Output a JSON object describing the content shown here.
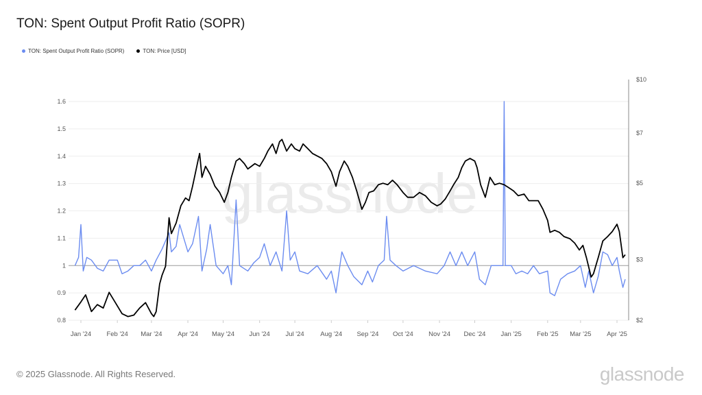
{
  "title": "TON: Spent Output Profit Ratio (SOPR)",
  "footer": "© 2025 Glassnode. All Rights Reserved.",
  "brand": "glassnode",
  "watermark": "glassnode",
  "chart_data": {
    "type": "line",
    "title": "TON: Spent Output Profit Ratio (SOPR)",
    "legend_placement": "top-left",
    "grid": true,
    "reference_line": 1.0,
    "x_ticks": [
      "Jan '24",
      "Feb '24",
      "Mar '24",
      "Apr '24",
      "May '24",
      "Jun '24",
      "Jul '24",
      "Aug '24",
      "Sep '24",
      "Oct '24",
      "Nov '24",
      "Dec '24",
      "Jan '25",
      "Feb '25",
      "Mar '25",
      "Apr '25"
    ],
    "x_tick_dates": [
      "2024-01-01",
      "2024-02-01",
      "2024-03-01",
      "2024-04-01",
      "2024-05-01",
      "2024-06-01",
      "2024-07-01",
      "2024-08-01",
      "2024-09-01",
      "2024-10-01",
      "2024-11-01",
      "2024-12-01",
      "2025-01-01",
      "2025-02-01",
      "2025-03-01",
      "2025-04-01"
    ],
    "y_left": {
      "range": [
        0.8,
        1.65
      ],
      "ticks": [
        "0.8",
        "0.9",
        "1",
        "1.1",
        "1.2",
        "1.3",
        "1.4",
        "1.5",
        "1.6"
      ],
      "tick_values": [
        0.8,
        0.9,
        1.0,
        1.1,
        1.2,
        1.3,
        1.4,
        1.5,
        1.6
      ]
    },
    "y_right": {
      "scale": "log",
      "range": [
        2,
        10
      ],
      "ticks": [
        "$2",
        "$3",
        "$5",
        "$7",
        "$10"
      ],
      "tick_values": [
        2,
        3,
        5,
        7,
        10
      ]
    },
    "colors": {
      "sopr": "#6b8cf0",
      "price": "#000000"
    },
    "series": [
      {
        "name": "TON: Spent Output Profit Ratio (SOPR)",
        "axis": "left",
        "points": [
          [
            "2023-12-27",
            1.0
          ],
          [
            "2023-12-30",
            1.03
          ],
          [
            "2024-01-01",
            1.15
          ],
          [
            "2024-01-03",
            0.98
          ],
          [
            "2024-01-06",
            1.03
          ],
          [
            "2024-01-10",
            1.02
          ],
          [
            "2024-01-15",
            0.99
          ],
          [
            "2024-01-20",
            0.98
          ],
          [
            "2024-01-25",
            1.02
          ],
          [
            "2024-02-01",
            1.02
          ],
          [
            "2024-02-05",
            0.97
          ],
          [
            "2024-02-10",
            0.98
          ],
          [
            "2024-02-15",
            1.0
          ],
          [
            "2024-02-20",
            1.0
          ],
          [
            "2024-02-25",
            1.02
          ],
          [
            "2024-03-01",
            0.98
          ],
          [
            "2024-03-05",
            1.02
          ],
          [
            "2024-03-10",
            1.06
          ],
          [
            "2024-03-16",
            1.12
          ],
          [
            "2024-03-18",
            1.05
          ],
          [
            "2024-03-22",
            1.07
          ],
          [
            "2024-03-25",
            1.15
          ],
          [
            "2024-04-01",
            1.05
          ],
          [
            "2024-04-05",
            1.08
          ],
          [
            "2024-04-10",
            1.18
          ],
          [
            "2024-04-13",
            0.98
          ],
          [
            "2024-04-17",
            1.06
          ],
          [
            "2024-04-20",
            1.15
          ],
          [
            "2024-04-25",
            1.0
          ],
          [
            "2024-05-01",
            0.97
          ],
          [
            "2024-05-05",
            1.0
          ],
          [
            "2024-05-08",
            0.93
          ],
          [
            "2024-05-12",
            1.24
          ],
          [
            "2024-05-15",
            1.0
          ],
          [
            "2024-05-22",
            0.98
          ],
          [
            "2024-05-27",
            1.01
          ],
          [
            "2024-06-01",
            1.03
          ],
          [
            "2024-06-05",
            1.08
          ],
          [
            "2024-06-10",
            1.0
          ],
          [
            "2024-06-15",
            1.05
          ],
          [
            "2024-06-20",
            0.98
          ],
          [
            "2024-06-24",
            1.2
          ],
          [
            "2024-06-27",
            1.02
          ],
          [
            "2024-07-01",
            1.05
          ],
          [
            "2024-07-05",
            0.98
          ],
          [
            "2024-07-12",
            0.97
          ],
          [
            "2024-07-20",
            1.0
          ],
          [
            "2024-07-28",
            0.95
          ],
          [
            "2024-08-01",
            0.98
          ],
          [
            "2024-08-05",
            0.9
          ],
          [
            "2024-08-10",
            1.05
          ],
          [
            "2024-08-15",
            1.0
          ],
          [
            "2024-08-20",
            0.96
          ],
          [
            "2024-08-27",
            0.93
          ],
          [
            "2024-09-01",
            0.98
          ],
          [
            "2024-09-05",
            0.94
          ],
          [
            "2024-09-10",
            1.0
          ],
          [
            "2024-09-15",
            1.02
          ],
          [
            "2024-09-17",
            1.18
          ],
          [
            "2024-09-20",
            1.02
          ],
          [
            "2024-09-25",
            1.0
          ],
          [
            "2024-10-01",
            0.98
          ],
          [
            "2024-10-10",
            1.0
          ],
          [
            "2024-10-20",
            0.98
          ],
          [
            "2024-10-30",
            0.97
          ],
          [
            "2024-11-05",
            1.0
          ],
          [
            "2024-11-10",
            1.05
          ],
          [
            "2024-11-15",
            1.0
          ],
          [
            "2024-11-20",
            1.05
          ],
          [
            "2024-11-25",
            1.0
          ],
          [
            "2024-12-01",
            1.05
          ],
          [
            "2024-12-05",
            0.95
          ],
          [
            "2024-12-10",
            0.93
          ],
          [
            "2024-12-15",
            1.0
          ],
          [
            "2024-12-20",
            1.0
          ],
          [
            "2024-12-25",
            1.0
          ],
          [
            "2024-12-26",
            1.6
          ],
          [
            "2024-12-27",
            1.0
          ],
          [
            "2025-01-01",
            1.0
          ],
          [
            "2025-01-05",
            0.97
          ],
          [
            "2025-01-10",
            0.98
          ],
          [
            "2025-01-15",
            0.97
          ],
          [
            "2025-01-20",
            1.0
          ],
          [
            "2025-01-25",
            0.97
          ],
          [
            "2025-02-01",
            0.98
          ],
          [
            "2025-02-03",
            0.9
          ],
          [
            "2025-02-07",
            0.89
          ],
          [
            "2025-02-12",
            0.95
          ],
          [
            "2025-02-18",
            0.97
          ],
          [
            "2025-02-24",
            0.98
          ],
          [
            "2025-03-01",
            1.0
          ],
          [
            "2025-03-05",
            0.92
          ],
          [
            "2025-03-08",
            0.98
          ],
          [
            "2025-03-12",
            0.9
          ],
          [
            "2025-03-16",
            0.96
          ],
          [
            "2025-03-20",
            1.05
          ],
          [
            "2025-03-24",
            1.04
          ],
          [
            "2025-03-28",
            1.0
          ],
          [
            "2025-04-01",
            1.03
          ],
          [
            "2025-04-03",
            0.98
          ],
          [
            "2025-04-06",
            0.92
          ],
          [
            "2025-04-08",
            0.95
          ]
        ]
      },
      {
        "name": "TON: Price [USD]",
        "axis": "right",
        "points": [
          [
            "2023-12-27",
            2.14
          ],
          [
            "2024-01-01",
            2.26
          ],
          [
            "2024-01-05",
            2.37
          ],
          [
            "2024-01-10",
            2.12
          ],
          [
            "2024-01-15",
            2.22
          ],
          [
            "2024-01-20",
            2.17
          ],
          [
            "2024-01-25",
            2.41
          ],
          [
            "2024-01-30",
            2.26
          ],
          [
            "2024-02-05",
            2.09
          ],
          [
            "2024-02-10",
            2.05
          ],
          [
            "2024-02-15",
            2.07
          ],
          [
            "2024-02-20",
            2.17
          ],
          [
            "2024-02-25",
            2.25
          ],
          [
            "2024-03-01",
            2.09
          ],
          [
            "2024-03-03",
            2.05
          ],
          [
            "2024-03-05",
            2.12
          ],
          [
            "2024-03-08",
            2.55
          ],
          [
            "2024-03-10",
            2.7
          ],
          [
            "2024-03-13",
            2.87
          ],
          [
            "2024-03-16",
            3.97
          ],
          [
            "2024-03-18",
            3.57
          ],
          [
            "2024-03-22",
            3.83
          ],
          [
            "2024-03-26",
            4.3
          ],
          [
            "2024-03-30",
            4.53
          ],
          [
            "2024-04-02",
            4.45
          ],
          [
            "2024-04-05",
            4.9
          ],
          [
            "2024-04-10",
            5.9
          ],
          [
            "2024-04-11",
            6.1
          ],
          [
            "2024-04-13",
            5.2
          ],
          [
            "2024-04-16",
            5.6
          ],
          [
            "2024-04-20",
            5.3
          ],
          [
            "2024-04-24",
            4.9
          ],
          [
            "2024-04-28",
            4.7
          ],
          [
            "2024-05-02",
            4.4
          ],
          [
            "2024-05-05",
            4.7
          ],
          [
            "2024-05-08",
            5.2
          ],
          [
            "2024-05-12",
            5.8
          ],
          [
            "2024-05-15",
            5.9
          ],
          [
            "2024-05-19",
            5.7
          ],
          [
            "2024-05-22",
            5.5
          ],
          [
            "2024-05-25",
            5.6
          ],
          [
            "2024-05-28",
            5.7
          ],
          [
            "2024-06-01",
            5.6
          ],
          [
            "2024-06-05",
            5.9
          ],
          [
            "2024-06-08",
            6.2
          ],
          [
            "2024-06-12",
            6.5
          ],
          [
            "2024-06-15",
            6.1
          ],
          [
            "2024-06-18",
            6.6
          ],
          [
            "2024-06-20",
            6.7
          ],
          [
            "2024-06-24",
            6.2
          ],
          [
            "2024-06-28",
            6.5
          ],
          [
            "2024-07-01",
            6.3
          ],
          [
            "2024-07-05",
            6.2
          ],
          [
            "2024-07-08",
            6.5
          ],
          [
            "2024-07-12",
            6.3
          ],
          [
            "2024-07-16",
            6.1
          ],
          [
            "2024-07-20",
            6.0
          ],
          [
            "2024-07-24",
            5.9
          ],
          [
            "2024-07-28",
            5.7
          ],
          [
            "2024-08-01",
            5.4
          ],
          [
            "2024-08-05",
            4.9
          ],
          [
            "2024-08-08",
            5.4
          ],
          [
            "2024-08-12",
            5.8
          ],
          [
            "2024-08-15",
            5.6
          ],
          [
            "2024-08-19",
            5.2
          ],
          [
            "2024-08-23",
            4.7
          ],
          [
            "2024-08-27",
            4.2
          ],
          [
            "2024-08-30",
            4.4
          ],
          [
            "2024-09-02",
            4.7
          ],
          [
            "2024-09-06",
            4.75
          ],
          [
            "2024-09-10",
            4.95
          ],
          [
            "2024-09-14",
            5.0
          ],
          [
            "2024-09-18",
            4.95
          ],
          [
            "2024-09-22",
            5.1
          ],
          [
            "2024-09-26",
            4.95
          ],
          [
            "2024-10-01",
            4.7
          ],
          [
            "2024-10-05",
            4.55
          ],
          [
            "2024-10-10",
            4.55
          ],
          [
            "2024-10-15",
            4.7
          ],
          [
            "2024-10-20",
            4.6
          ],
          [
            "2024-10-25",
            4.4
          ],
          [
            "2024-10-30",
            4.3
          ],
          [
            "2024-11-02",
            4.35
          ],
          [
            "2024-11-06",
            4.5
          ],
          [
            "2024-11-10",
            4.75
          ],
          [
            "2024-11-13",
            4.95
          ],
          [
            "2024-11-17",
            5.2
          ],
          [
            "2024-11-20",
            5.55
          ],
          [
            "2024-11-23",
            5.8
          ],
          [
            "2024-11-27",
            5.9
          ],
          [
            "2024-12-01",
            5.8
          ],
          [
            "2024-12-03",
            5.55
          ],
          [
            "2024-12-06",
            4.95
          ],
          [
            "2024-12-10",
            4.55
          ],
          [
            "2024-12-14",
            5.2
          ],
          [
            "2024-12-18",
            4.95
          ],
          [
            "2024-12-22",
            5.0
          ],
          [
            "2024-12-26",
            4.95
          ],
          [
            "2024-12-30",
            4.85
          ],
          [
            "2025-01-03",
            4.75
          ],
          [
            "2025-01-07",
            4.6
          ],
          [
            "2025-01-12",
            4.65
          ],
          [
            "2025-01-16",
            4.45
          ],
          [
            "2025-01-20",
            4.45
          ],
          [
            "2025-01-24",
            4.45
          ],
          [
            "2025-01-28",
            4.2
          ],
          [
            "2025-02-01",
            3.9
          ],
          [
            "2025-02-03",
            3.6
          ],
          [
            "2025-02-07",
            3.65
          ],
          [
            "2025-02-11",
            3.6
          ],
          [
            "2025-02-15",
            3.5
          ],
          [
            "2025-02-20",
            3.45
          ],
          [
            "2025-02-24",
            3.35
          ],
          [
            "2025-02-28",
            3.2
          ],
          [
            "2025-03-03",
            3.3
          ],
          [
            "2025-03-06",
            3.04
          ],
          [
            "2025-03-10",
            2.67
          ],
          [
            "2025-03-12",
            2.73
          ],
          [
            "2025-03-16",
            3.04
          ],
          [
            "2025-03-20",
            3.4
          ],
          [
            "2025-03-24",
            3.5
          ],
          [
            "2025-03-28",
            3.62
          ],
          [
            "2025-04-01",
            3.8
          ],
          [
            "2025-04-03",
            3.62
          ],
          [
            "2025-04-06",
            3.04
          ],
          [
            "2025-04-08",
            3.1
          ]
        ]
      }
    ]
  }
}
